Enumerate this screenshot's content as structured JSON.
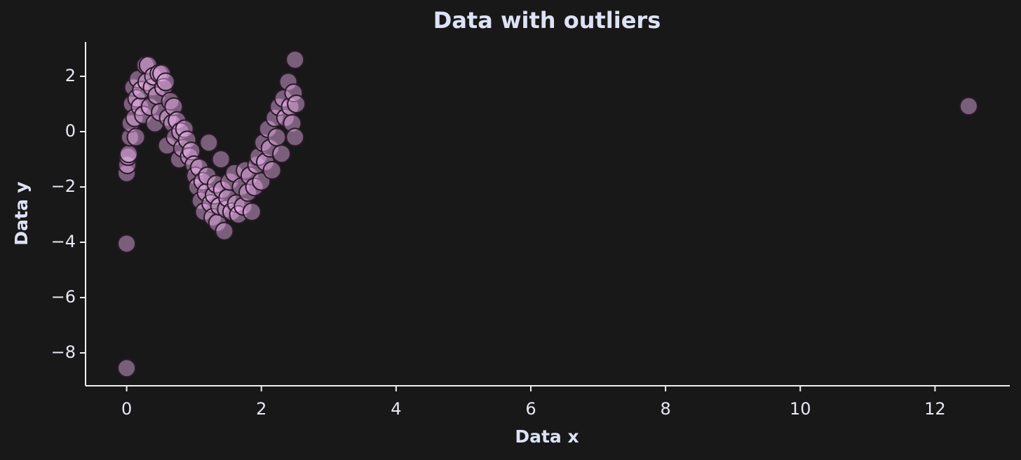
{
  "chart_data": {
    "type": "scatter",
    "title": "Data with outliers",
    "xlabel": "Data x",
    "ylabel": "Data y",
    "color": "#f2b6f2",
    "edgecolor": "#2a1a2a",
    "x": [
      0.0,
      0.01,
      0.02,
      0.03,
      0.05,
      0.06,
      0.08,
      0.1,
      0.12,
      0.14,
      0.15,
      0.17,
      0.2,
      0.22,
      0.25,
      0.28,
      0.3,
      0.32,
      0.35,
      0.38,
      0.4,
      0.42,
      0.45,
      0.48,
      0.5,
      0.52,
      0.55,
      0.58,
      0.6,
      0.62,
      0.65,
      0.68,
      0.7,
      0.72,
      0.75,
      0.78,
      0.8,
      0.83,
      0.86,
      0.9,
      0.93,
      0.96,
      1.0,
      1.02,
      1.05,
      1.08,
      1.1,
      1.13,
      1.15,
      1.18,
      1.2,
      1.22,
      1.25,
      1.28,
      1.3,
      1.33,
      1.35,
      1.38,
      1.4,
      1.42,
      1.45,
      1.48,
      1.5,
      1.53,
      1.56,
      1.6,
      1.63,
      1.66,
      1.7,
      1.73,
      1.76,
      1.8,
      1.83,
      1.86,
      1.9,
      1.93,
      1.96,
      2.0,
      2.03,
      2.06,
      2.1,
      2.13,
      2.16,
      2.2,
      2.23,
      2.26,
      2.3,
      2.33,
      2.36,
      2.4,
      2.43,
      2.46,
      2.48,
      2.5,
      2.5,
      2.52,
      0.0,
      0.0,
      12.5
    ],
    "values": [
      -1.5,
      -1.2,
      -0.9,
      -0.8,
      -0.2,
      0.3,
      1.0,
      1.6,
      0.5,
      -0.2,
      1.2,
      1.9,
      0.9,
      1.5,
      0.6,
      2.4,
      1.8,
      2.4,
      0.9,
      1.6,
      2.0,
      0.3,
      1.3,
      2.1,
      0.7,
      2.1,
      1.6,
      1.8,
      -0.5,
      0.5,
      1.1,
      0.3,
      0.9,
      -0.2,
      0.4,
      -1.0,
      0.0,
      -0.6,
      0.1,
      -0.3,
      -0.9,
      -0.7,
      -1.2,
      -1.6,
      -2.0,
      -1.3,
      -2.5,
      -1.8,
      -2.9,
      -2.2,
      -1.6,
      -0.4,
      -2.6,
      -3.1,
      -2.3,
      -1.9,
      -3.3,
      -2.7,
      -1.0,
      -2.1,
      -3.6,
      -2.8,
      -2.4,
      -1.8,
      -2.9,
      -1.5,
      -2.6,
      -3.0,
      -2.0,
      -2.7,
      -1.4,
      -2.2,
      -1.6,
      -2.9,
      -2.0,
      -1.2,
      -0.9,
      -1.8,
      -0.4,
      -1.1,
      0.1,
      -0.6,
      -1.4,
      0.5,
      -0.2,
      0.9,
      -0.8,
      1.2,
      0.5,
      1.8,
      0.9,
      0.3,
      1.4,
      -0.2,
      2.6,
      1.0,
      -4.05,
      -8.55,
      0.92
    ],
    "xlim": [
      -0.61,
      13.11
    ],
    "ylim": [
      -9.19,
      3.24
    ],
    "xticks": [
      0,
      2,
      4,
      6,
      8,
      10,
      12
    ],
    "yticks": [
      {
        "value": -8,
        "label": "−8"
      },
      {
        "value": -6,
        "label": "−6"
      },
      {
        "value": -4,
        "label": "−4"
      },
      {
        "value": -2,
        "label": "−2"
      },
      0,
      2
    ]
  }
}
